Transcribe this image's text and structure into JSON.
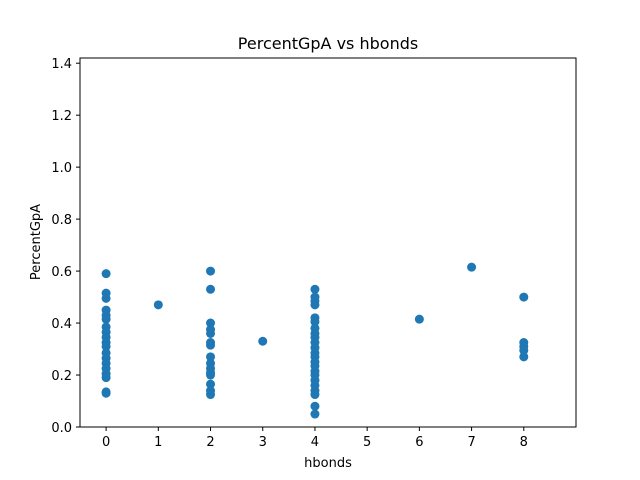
{
  "chart_data": {
    "type": "scatter",
    "title": "PercentGpA vs hbonds",
    "xlabel": "hbonds",
    "ylabel": "PercentGpA",
    "xlim": [
      -0.5,
      9.0
    ],
    "ylim": [
      0.0,
      1.42
    ],
    "xticks": [
      "0",
      "1",
      "2",
      "3",
      "4",
      "5",
      "6",
      "7",
      "8"
    ],
    "yticks": [
      "0.0",
      "0.2",
      "0.4",
      "0.6",
      "0.8",
      "1.0",
      "1.2",
      "1.4"
    ],
    "grid": false,
    "marker_color": "#1f77b4",
    "series": [
      {
        "points": [
          [
            0,
            0.59
          ],
          [
            0,
            0.515
          ],
          [
            0,
            0.495
          ],
          [
            0,
            0.45
          ],
          [
            0,
            0.43
          ],
          [
            0,
            0.415
          ],
          [
            0,
            0.385
          ],
          [
            0,
            0.365
          ],
          [
            0,
            0.345
          ],
          [
            0,
            0.325
          ],
          [
            0,
            0.31
          ],
          [
            0,
            0.285
          ],
          [
            0,
            0.265
          ],
          [
            0,
            0.245
          ],
          [
            0,
            0.225
          ],
          [
            0,
            0.205
          ],
          [
            0,
            0.19
          ],
          [
            0,
            0.135
          ],
          [
            0,
            0.13
          ],
          [
            1,
            0.47
          ],
          [
            2,
            0.6
          ],
          [
            2,
            0.53
          ],
          [
            2,
            0.4
          ],
          [
            2,
            0.375
          ],
          [
            2,
            0.36
          ],
          [
            2,
            0.325
          ],
          [
            2,
            0.315
          ],
          [
            2,
            0.27
          ],
          [
            2,
            0.245
          ],
          [
            2,
            0.225
          ],
          [
            2,
            0.21
          ],
          [
            2,
            0.2
          ],
          [
            2,
            0.165
          ],
          [
            2,
            0.14
          ],
          [
            2,
            0.125
          ],
          [
            3,
            0.33
          ],
          [
            4,
            0.53
          ],
          [
            4,
            0.5
          ],
          [
            4,
            0.485
          ],
          [
            4,
            0.47
          ],
          [
            4,
            0.42
          ],
          [
            4,
            0.405
          ],
          [
            4,
            0.38
          ],
          [
            4,
            0.36
          ],
          [
            4,
            0.345
          ],
          [
            4,
            0.325
          ],
          [
            4,
            0.305
          ],
          [
            4,
            0.285
          ],
          [
            4,
            0.27
          ],
          [
            4,
            0.25
          ],
          [
            4,
            0.235
          ],
          [
            4,
            0.215
          ],
          [
            4,
            0.2
          ],
          [
            4,
            0.18
          ],
          [
            4,
            0.16
          ],
          [
            4,
            0.14
          ],
          [
            4,
            0.125
          ],
          [
            4,
            0.08
          ],
          [
            4,
            0.05
          ],
          [
            6,
            0.415
          ],
          [
            7,
            0.615
          ],
          [
            8,
            0.5
          ],
          [
            8,
            0.325
          ],
          [
            8,
            0.31
          ],
          [
            8,
            0.295
          ],
          [
            8,
            0.27
          ]
        ]
      }
    ]
  }
}
